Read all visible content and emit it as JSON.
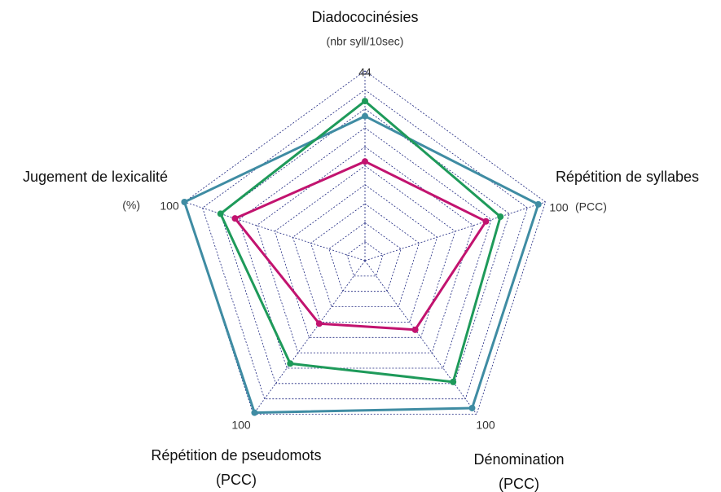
{
  "chart_data": {
    "type": "radar",
    "axes": [
      {
        "label": "Diadococinésies",
        "unit": "(nbr syll/10sec)",
        "max": 44
      },
      {
        "label": "Répétition de syllabes",
        "unit": "(PCC)",
        "max": 100
      },
      {
        "label": "Dénomination",
        "unit": "(PCC)",
        "max": 100
      },
      {
        "label": "Répétition de pseudomots",
        "unit": "(PCC)",
        "max": 100
      },
      {
        "label": "Jugement de lexicalité",
        "unit": "(%)",
        "max": 100
      }
    ],
    "grid_rings": 10,
    "series": [
      {
        "color": "#3f8ca3",
        "values": [
          33.5,
          96,
          96,
          99,
          100
        ]
      },
      {
        "color": "#1e9a5a",
        "values": [
          37,
          75,
          79,
          67,
          80
        ]
      },
      {
        "color": "#c2136f",
        "values": [
          23,
          67,
          45,
          41,
          72
        ]
      }
    ]
  }
}
